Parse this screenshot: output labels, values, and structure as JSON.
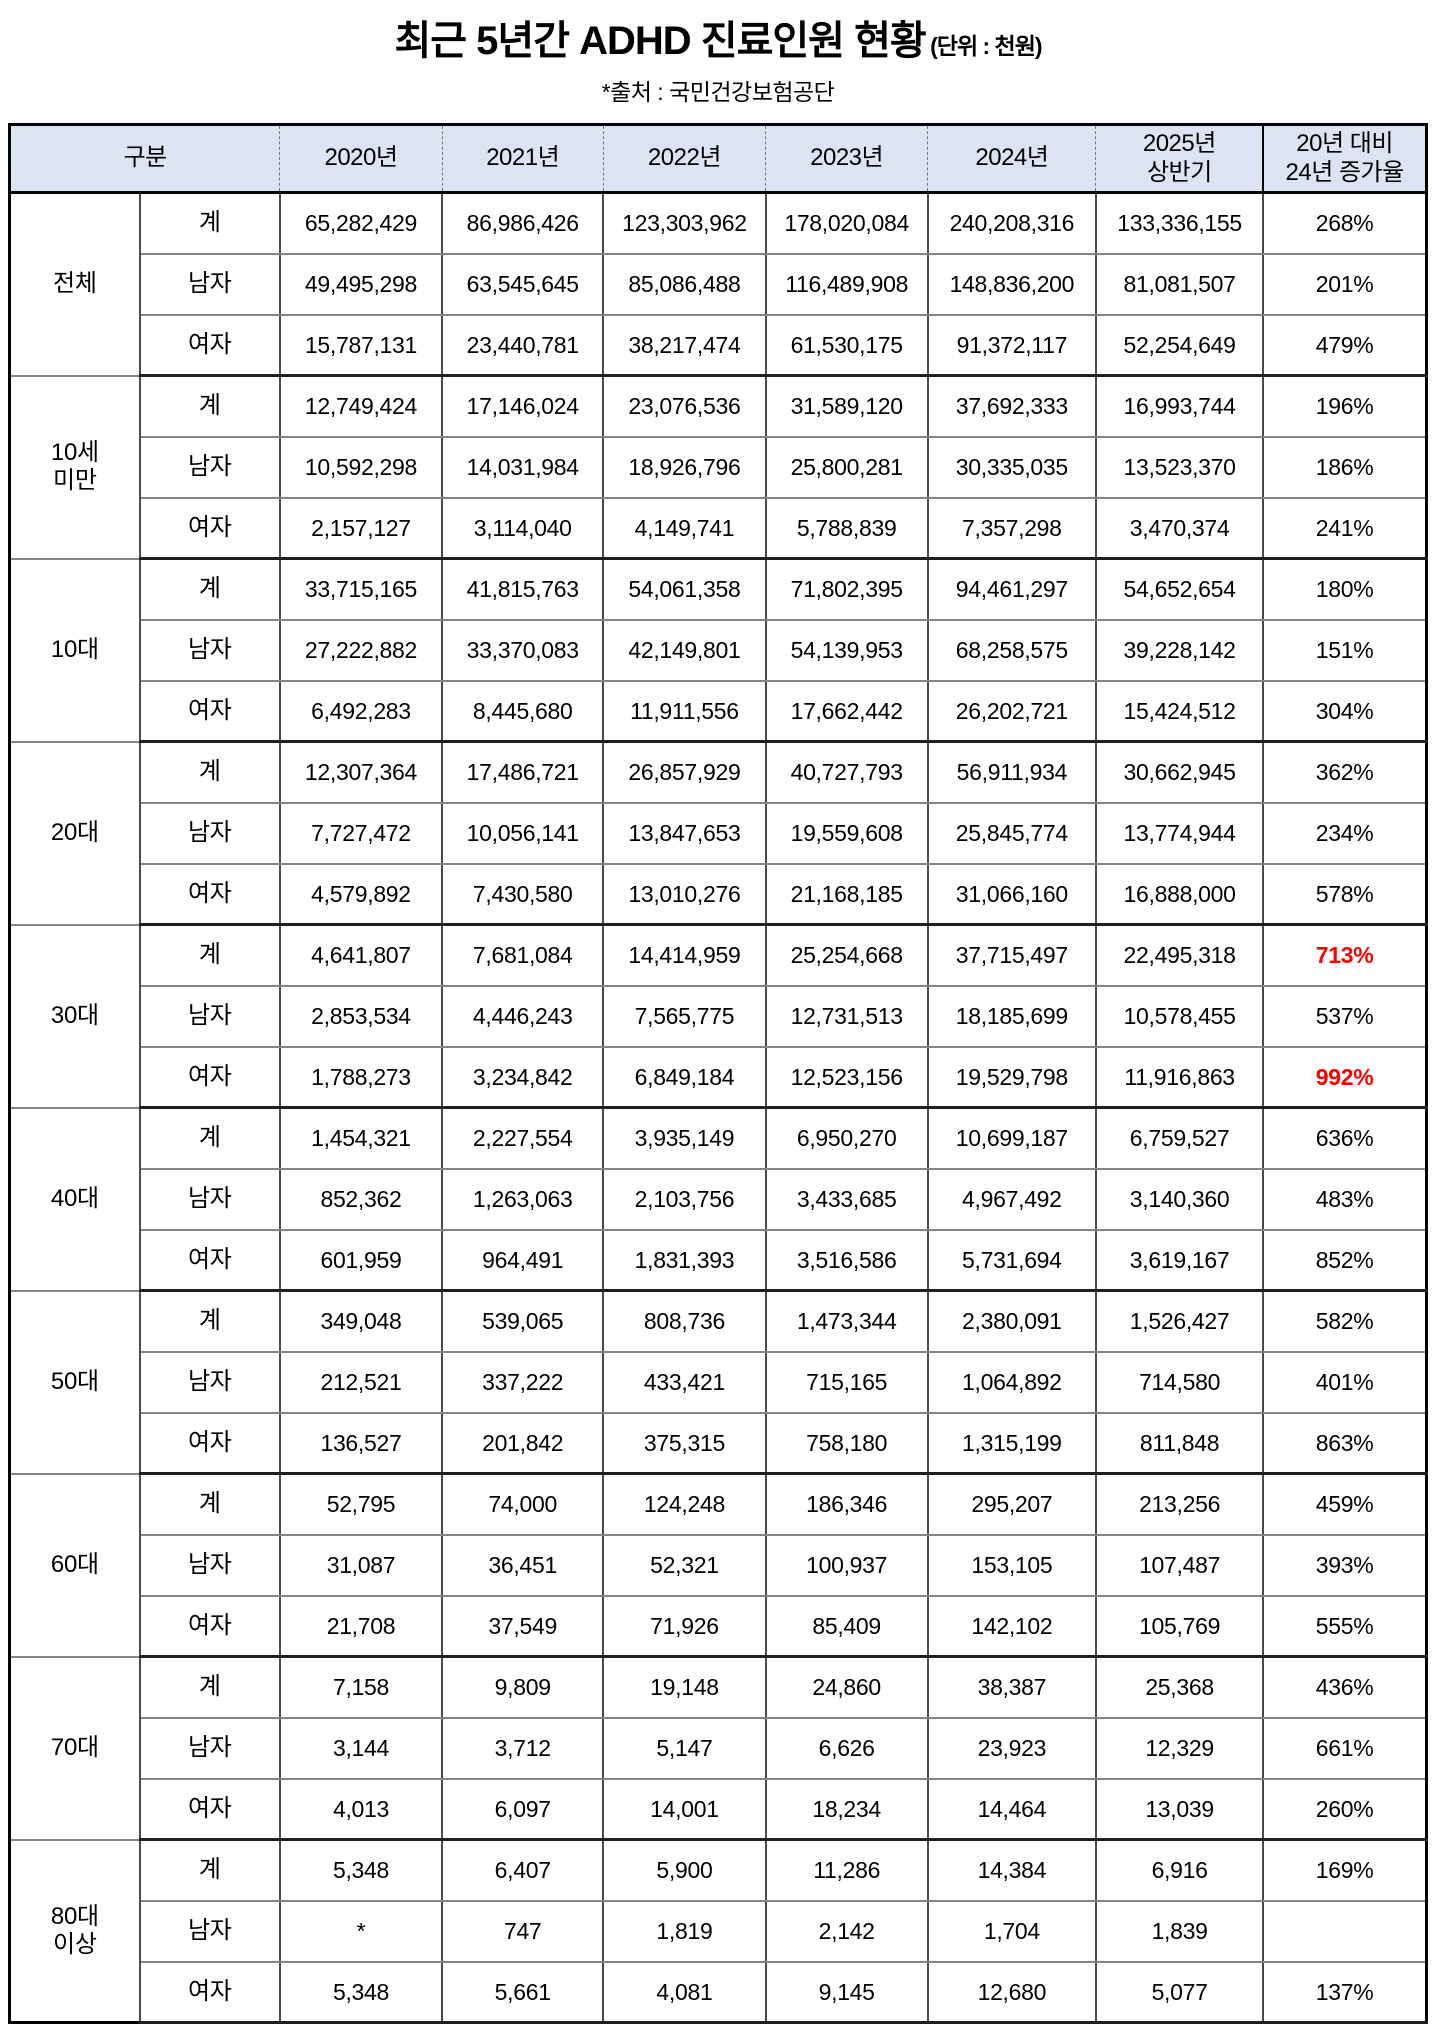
{
  "title": {
    "main": "최근 5년간 ADHD 진료인원 현황",
    "unit": "(단위 : 천원)",
    "source": "*출처 : 국민건강보험공단"
  },
  "colors": {
    "header_bg": "#dce3f3",
    "highlight_red": "#ff0000"
  },
  "table": {
    "header": {
      "gubun": "구분",
      "columns": [
        {
          "label": "2020년"
        },
        {
          "label": "2021년"
        },
        {
          "label": "2022년"
        },
        {
          "label": "2023년"
        },
        {
          "label": "2024년"
        },
        {
          "label": "2025년 상반기",
          "lines": [
            "2025년",
            "상반기"
          ]
        },
        {
          "label": "20년 대비 24년 증가율",
          "lines": [
            "20년 대비",
            "24년 증가율"
          ]
        }
      ]
    },
    "groups": [
      {
        "label": "전체",
        "rows": [
          {
            "label": "계",
            "values": [
              "65,282,429",
              "86,986,426",
              "123,303,962",
              "178,020,084",
              "240,208,316",
              "133,336,155"
            ],
            "rate": "268%"
          },
          {
            "label": "남자",
            "values": [
              "49,495,298",
              "63,545,645",
              "85,086,488",
              "116,489,908",
              "148,836,200",
              "81,081,507"
            ],
            "rate": "201%"
          },
          {
            "label": "여자",
            "values": [
              "15,787,131",
              "23,440,781",
              "38,217,474",
              "61,530,175",
              "91,372,117",
              "52,254,649"
            ],
            "rate": "479%"
          }
        ]
      },
      {
        "label": "10세 미만",
        "lines": [
          "10세",
          "미만"
        ],
        "rows": [
          {
            "label": "계",
            "values": [
              "12,749,424",
              "17,146,024",
              "23,076,536",
              "31,589,120",
              "37,692,333",
              "16,993,744"
            ],
            "rate": "196%"
          },
          {
            "label": "남자",
            "values": [
              "10,592,298",
              "14,031,984",
              "18,926,796",
              "25,800,281",
              "30,335,035",
              "13,523,370"
            ],
            "rate": "186%"
          },
          {
            "label": "여자",
            "values": [
              "2,157,127",
              "3,114,040",
              "4,149,741",
              "5,788,839",
              "7,357,298",
              "3,470,374"
            ],
            "rate": "241%"
          }
        ]
      },
      {
        "label": "10대",
        "rows": [
          {
            "label": "계",
            "values": [
              "33,715,165",
              "41,815,763",
              "54,061,358",
              "71,802,395",
              "94,461,297",
              "54,652,654"
            ],
            "rate": "180%"
          },
          {
            "label": "남자",
            "values": [
              "27,222,882",
              "33,370,083",
              "42,149,801",
              "54,139,953",
              "68,258,575",
              "39,228,142"
            ],
            "rate": "151%"
          },
          {
            "label": "여자",
            "values": [
              "6,492,283",
              "8,445,680",
              "11,911,556",
              "17,662,442",
              "26,202,721",
              "15,424,512"
            ],
            "rate": "304%"
          }
        ]
      },
      {
        "label": "20대",
        "rows": [
          {
            "label": "계",
            "values": [
              "12,307,364",
              "17,486,721",
              "26,857,929",
              "40,727,793",
              "56,911,934",
              "30,662,945"
            ],
            "rate": "362%"
          },
          {
            "label": "남자",
            "values": [
              "7,727,472",
              "10,056,141",
              "13,847,653",
              "19,559,608",
              "25,845,774",
              "13,774,944"
            ],
            "rate": "234%"
          },
          {
            "label": "여자",
            "values": [
              "4,579,892",
              "7,430,580",
              "13,010,276",
              "21,168,185",
              "31,066,160",
              "16,888,000"
            ],
            "rate": "578%"
          }
        ]
      },
      {
        "label": "30대",
        "rows": [
          {
            "label": "계",
            "values": [
              "4,641,807",
              "7,681,084",
              "14,414,959",
              "25,254,668",
              "37,715,497",
              "22,495,318"
            ],
            "rate": "713%",
            "red": true
          },
          {
            "label": "남자",
            "values": [
              "2,853,534",
              "4,446,243",
              "7,565,775",
              "12,731,513",
              "18,185,699",
              "10,578,455"
            ],
            "rate": "537%"
          },
          {
            "label": "여자",
            "values": [
              "1,788,273",
              "3,234,842",
              "6,849,184",
              "12,523,156",
              "19,529,798",
              "11,916,863"
            ],
            "rate": "992%",
            "red": true
          }
        ]
      },
      {
        "label": "40대",
        "rows": [
          {
            "label": "계",
            "values": [
              "1,454,321",
              "2,227,554",
              "3,935,149",
              "6,950,270",
              "10,699,187",
              "6,759,527"
            ],
            "rate": "636%"
          },
          {
            "label": "남자",
            "values": [
              "852,362",
              "1,263,063",
              "2,103,756",
              "3,433,685",
              "4,967,492",
              "3,140,360"
            ],
            "rate": "483%"
          },
          {
            "label": "여자",
            "values": [
              "601,959",
              "964,491",
              "1,831,393",
              "3,516,586",
              "5,731,694",
              "3,619,167"
            ],
            "rate": "852%"
          }
        ]
      },
      {
        "label": "50대",
        "rows": [
          {
            "label": "계",
            "values": [
              "349,048",
              "539,065",
              "808,736",
              "1,473,344",
              "2,380,091",
              "1,526,427"
            ],
            "rate": "582%"
          },
          {
            "label": "남자",
            "values": [
              "212,521",
              "337,222",
              "433,421",
              "715,165",
              "1,064,892",
              "714,580"
            ],
            "rate": "401%"
          },
          {
            "label": "여자",
            "values": [
              "136,527",
              "201,842",
              "375,315",
              "758,180",
              "1,315,199",
              "811,848"
            ],
            "rate": "863%"
          }
        ]
      },
      {
        "label": "60대",
        "rows": [
          {
            "label": "계",
            "values": [
              "52,795",
              "74,000",
              "124,248",
              "186,346",
              "295,207",
              "213,256"
            ],
            "rate": "459%"
          },
          {
            "label": "남자",
            "values": [
              "31,087",
              "36,451",
              "52,321",
              "100,937",
              "153,105",
              "107,487"
            ],
            "rate": "393%"
          },
          {
            "label": "여자",
            "values": [
              "21,708",
              "37,549",
              "71,926",
              "85,409",
              "142,102",
              "105,769"
            ],
            "rate": "555%"
          }
        ]
      },
      {
        "label": "70대",
        "rows": [
          {
            "label": "계",
            "values": [
              "7,158",
              "9,809",
              "19,148",
              "24,860",
              "38,387",
              "25,368"
            ],
            "rate": "436%"
          },
          {
            "label": "남자",
            "values": [
              "3,144",
              "3,712",
              "5,147",
              "6,626",
              "23,923",
              "12,329"
            ],
            "rate": "661%"
          },
          {
            "label": "여자",
            "values": [
              "4,013",
              "6,097",
              "14,001",
              "18,234",
              "14,464",
              "13,039"
            ],
            "rate": "260%"
          }
        ]
      },
      {
        "label": "80대 이상",
        "lines": [
          "80대",
          "이상"
        ],
        "rows": [
          {
            "label": "계",
            "values": [
              "5,348",
              "6,407",
              "5,900",
              "11,286",
              "14,384",
              "6,916"
            ],
            "rate": "169%"
          },
          {
            "label": "남자",
            "values": [
              "*",
              "747",
              "1,819",
              "2,142",
              "1,704",
              "1,839"
            ],
            "rate": ""
          },
          {
            "label": "여자",
            "values": [
              "5,348",
              "5,661",
              "4,081",
              "9,145",
              "12,680",
              "5,077"
            ],
            "rate": "137%"
          }
        ]
      }
    ]
  }
}
